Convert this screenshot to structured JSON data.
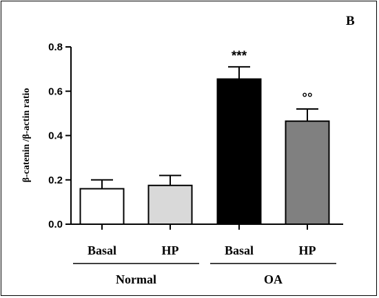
{
  "chart_data": {
    "type": "bar",
    "panel_label": "B",
    "ylabel": "β-catenin /β-actin ratio",
    "ylim": [
      0,
      0.8
    ],
    "yticks": [
      "0.0",
      "0.2",
      "0.4",
      "0.6",
      "0.8"
    ],
    "categories": [
      "Basal",
      "HP",
      "Basal",
      "HP"
    ],
    "groups": [
      {
        "label": "Normal",
        "members": [
          0,
          1
        ]
      },
      {
        "label": "OA",
        "members": [
          2,
          3
        ]
      }
    ],
    "values": [
      0.16,
      0.175,
      0.655,
      0.465
    ],
    "errors": [
      0.04,
      0.045,
      0.055,
      0.055
    ],
    "colors": [
      "#ffffff",
      "#d9d9d9",
      "#000000",
      "#808080"
    ],
    "annotations": [
      "",
      "",
      "***",
      "°°"
    ],
    "grid": false
  }
}
